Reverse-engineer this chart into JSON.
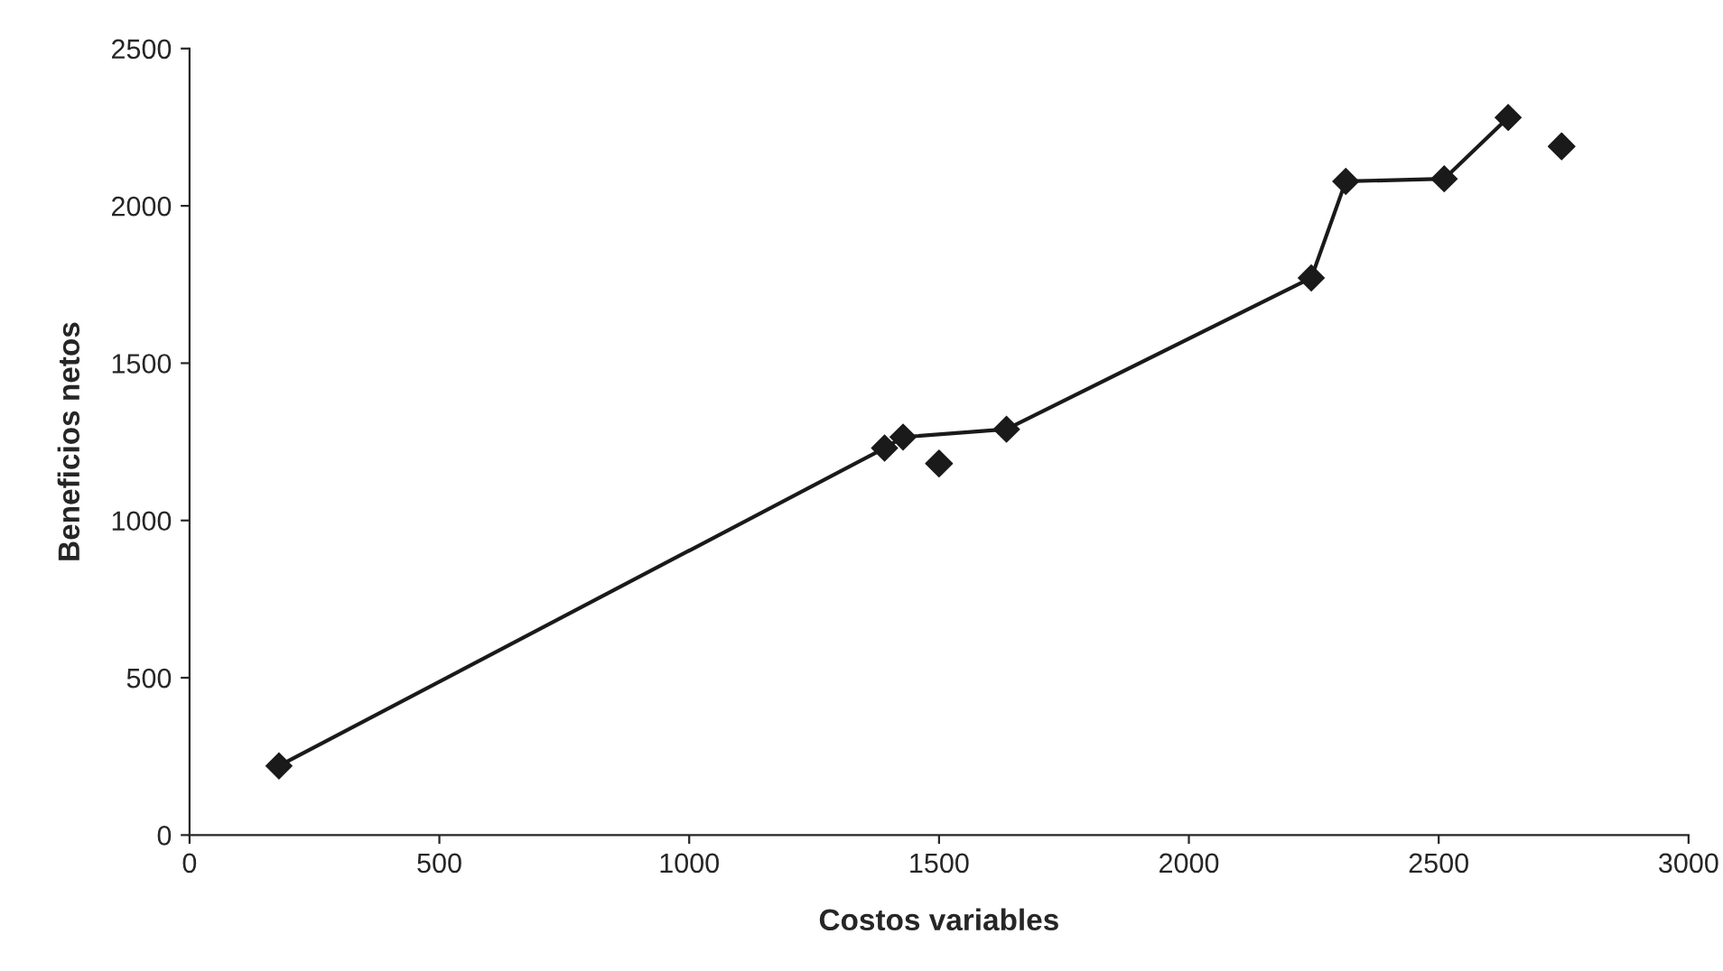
{
  "chart_data": {
    "type": "line",
    "xlabel": "Costos variables",
    "ylabel": "Beneficios netos",
    "xlim": [
      0,
      3000
    ],
    "xticks": [
      0,
      500,
      1000,
      1500,
      2000,
      2500,
      3000
    ],
    "ylim": [
      0,
      2500
    ],
    "yticks": [
      0,
      500,
      1000,
      1500,
      2000,
      2500
    ],
    "grid": false,
    "legend": false,
    "marker": "diamond",
    "series": [
      {
        "color": "#1a1a1a",
        "x": [
          179,
          1391,
          1428,
          1635,
          2245,
          2314,
          2511,
          2639
        ],
        "values": [
          220,
          1230,
          1265,
          1290,
          1771,
          2078,
          2086,
          2281
        ],
        "line_style": "solid"
      },
      {
        "type": "scatter",
        "color": "#1a1a1a",
        "x": [
          1500,
          2746
        ],
        "values": [
          1181,
          2189
        ]
      }
    ]
  }
}
